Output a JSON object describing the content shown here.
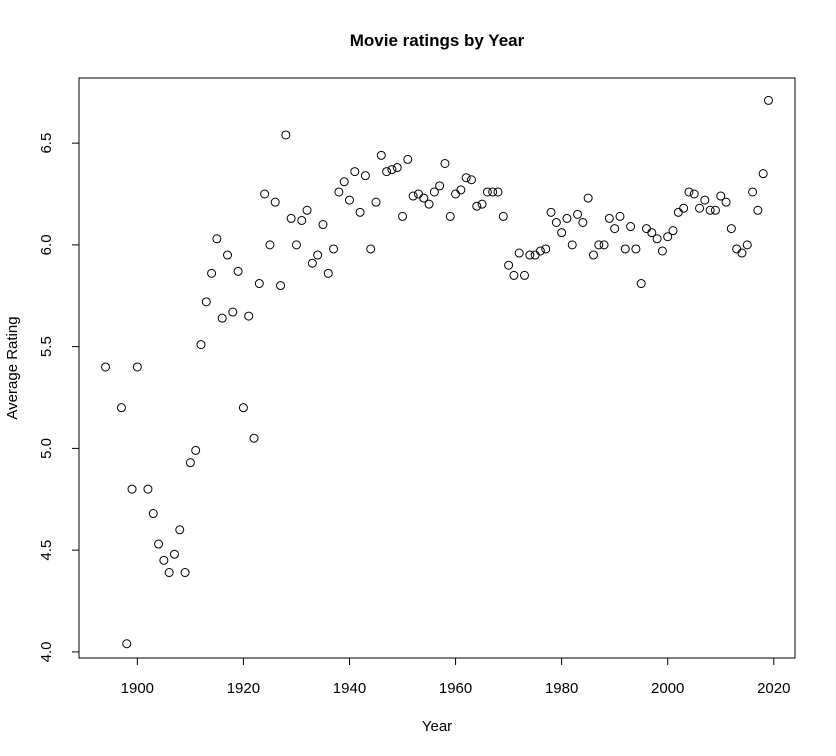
{
  "chart_data": {
    "type": "scatter",
    "title": "Movie ratings by Year",
    "xlabel": "Year",
    "ylabel": "Average Rating",
    "xlim": [
      1889,
      2024
    ],
    "ylim": [
      3.97,
      6.82
    ],
    "xticks": [
      1900,
      1920,
      1940,
      1960,
      1980,
      2000,
      2020
    ],
    "yticks": [
      4.0,
      4.5,
      5.0,
      5.5,
      6.0,
      6.5
    ],
    "ytick_labels": [
      "4.0",
      "4.5",
      "5.0",
      "5.5",
      "6.0",
      "6.5"
    ],
    "grid": false,
    "legend": "none",
    "marker": "open-circle",
    "x": [
      1894,
      1897,
      1898,
      1899,
      1900,
      1902,
      1903,
      1904,
      1905,
      1906,
      1907,
      1908,
      1909,
      1910,
      1911,
      1912,
      1913,
      1914,
      1915,
      1916,
      1917,
      1918,
      1919,
      1920,
      1921,
      1922,
      1923,
      1924,
      1925,
      1926,
      1927,
      1928,
      1929,
      1930,
      1931,
      1932,
      1933,
      1934,
      1935,
      1936,
      1937,
      1938,
      1939,
      1940,
      1941,
      1942,
      1943,
      1944,
      1945,
      1946,
      1947,
      1948,
      1949,
      1950,
      1951,
      1952,
      1953,
      1954,
      1955,
      1956,
      1957,
      1958,
      1959,
      1960,
      1961,
      1962,
      1963,
      1964,
      1965,
      1966,
      1967,
      1968,
      1969,
      1970,
      1971,
      1972,
      1973,
      1974,
      1975,
      1976,
      1977,
      1978,
      1979,
      1980,
      1981,
      1982,
      1983,
      1984,
      1985,
      1986,
      1987,
      1988,
      1989,
      1990,
      1991,
      1992,
      1993,
      1994,
      1995,
      1996,
      1997,
      1998,
      1999,
      2000,
      2001,
      2002,
      2003,
      2004,
      2005,
      2006,
      2007,
      2008,
      2009,
      2010,
      2011,
      2012,
      2013,
      2014,
      2015,
      2016,
      2017,
      2018,
      2019
    ],
    "y": [
      5.4,
      5.2,
      4.04,
      4.8,
      5.4,
      4.8,
      4.68,
      4.53,
      4.45,
      4.39,
      4.48,
      4.6,
      4.39,
      4.93,
      4.99,
      5.51,
      5.72,
      5.86,
      6.03,
      5.64,
      5.95,
      5.67,
      5.87,
      5.2,
      5.65,
      5.05,
      5.81,
      6.25,
      6.0,
      6.21,
      5.8,
      6.54,
      6.13,
      6.0,
      6.12,
      6.17,
      5.91,
      5.95,
      6.1,
      5.86,
      5.98,
      6.26,
      6.31,
      6.22,
      6.36,
      6.16,
      6.34,
      5.98,
      6.21,
      6.44,
      6.36,
      6.37,
      6.38,
      6.14,
      6.42,
      6.24,
      6.25,
      6.23,
      6.2,
      6.26,
      6.29,
      6.4,
      6.14,
      6.25,
      6.27,
      6.33,
      6.32,
      6.19,
      6.2,
      6.26,
      6.26,
      6.26,
      6.14,
      5.9,
      5.85,
      5.96,
      5.85,
      5.95,
      5.95,
      5.97,
      5.98,
      6.16,
      6.11,
      6.06,
      6.13,
      6.0,
      6.15,
      6.11,
      6.23,
      5.95,
      6.0,
      6.0,
      6.13,
      6.08,
      6.14,
      5.98,
      6.09,
      5.98,
      5.81,
      6.08,
      6.06,
      6.03,
      5.97,
      6.04,
      6.07,
      6.16,
      6.18,
      6.26,
      6.25,
      6.18,
      6.22,
      6.17,
      6.17,
      6.24,
      6.21,
      6.08,
      5.98,
      5.96,
      6.0,
      6.26,
      6.17,
      6.35,
      6.71
    ]
  }
}
